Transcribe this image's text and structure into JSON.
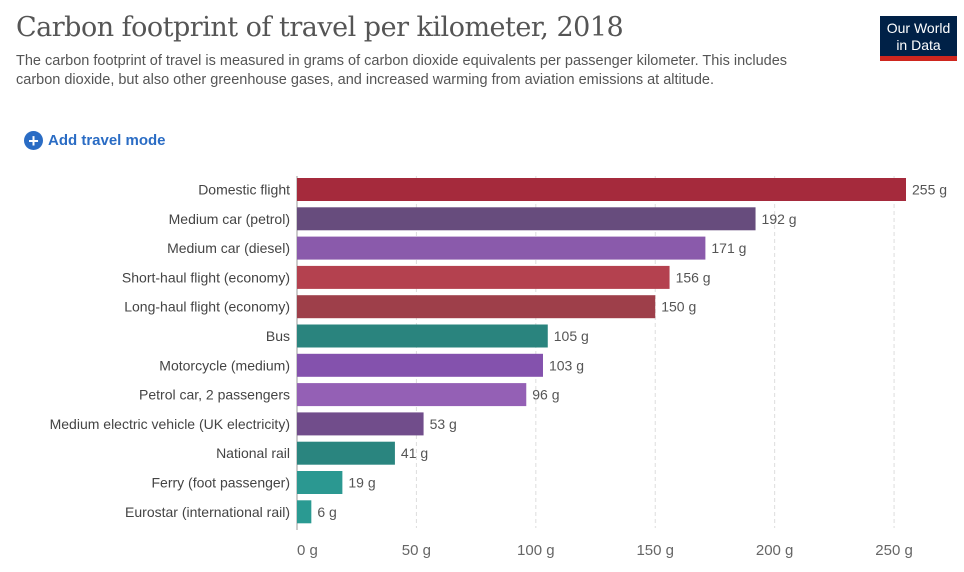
{
  "header": {
    "title": "Carbon footprint of travel per kilometer, 2018",
    "subtitle": "The carbon footprint of travel is measured in grams of carbon dioxide equivalents per passenger kilometer. This includes carbon dioxide, but also other greenhouse gases, and increased warming from aviation emissions at altitude.",
    "logo_line1": "Our World",
    "logo_line2": "in Data"
  },
  "controls": {
    "add_label": "Add travel mode"
  },
  "chart_data": {
    "type": "bar",
    "orientation": "horizontal",
    "title": "Carbon footprint of travel per kilometer, 2018",
    "categories": [
      "Domestic flight",
      "Medium car (petrol)",
      "Medium car (diesel)",
      "Short-haul flight (economy)",
      "Long-haul flight (economy)",
      "Bus",
      "Motorcycle (medium)",
      "Petrol car, 2 passengers",
      "Medium electric vehicle (UK electricity)",
      "National rail",
      "Ferry (foot passenger)",
      "Eurostar (international rail)"
    ],
    "values": [
      255,
      192,
      171,
      156,
      150,
      105,
      103,
      96,
      53,
      41,
      19,
      6
    ],
    "value_labels": [
      "255 g",
      "192 g",
      "171 g",
      "156 g",
      "150 g",
      "105 g",
      "103 g",
      "96 g",
      "53 g",
      "41 g",
      "19 g",
      "6 g"
    ],
    "colors": [
      "#a52a3c",
      "#674c7d",
      "#8a5aab",
      "#b4414f",
      "#9e3f4a",
      "#2a847e",
      "#8452ad",
      "#9460b5",
      "#714d8b",
      "#2a857f",
      "#2b9891",
      "#2a9a92"
    ],
    "xticks": [
      0,
      50,
      100,
      150,
      200,
      250
    ],
    "xtick_labels": [
      "0 g",
      "50 g",
      "100 g",
      "150 g",
      "200 g",
      "250 g"
    ],
    "xlim": [
      0,
      255
    ],
    "unit": "g",
    "grid": true
  }
}
